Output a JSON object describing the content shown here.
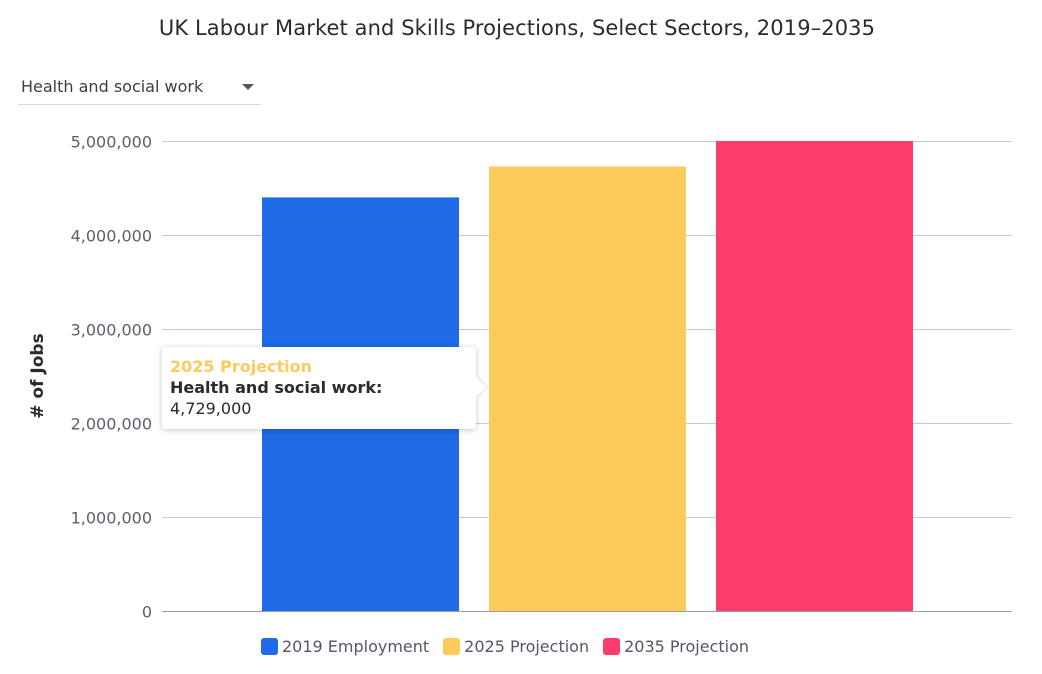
{
  "chart_data": {
    "type": "bar",
    "title": "UK Labour Market and Skills Projections, Select Sectors, 2019–2035",
    "xlabel": "",
    "ylabel": "# of Jobs",
    "ylim": [
      0,
      5000000
    ],
    "yticks": [
      {
        "value": 0,
        "label": "0"
      },
      {
        "value": 1000000,
        "label": "1,000,000"
      },
      {
        "value": 2000000,
        "label": "2,000,000"
      },
      {
        "value": 3000000,
        "label": "3,000,000"
      },
      {
        "value": 4000000,
        "label": "4,000,000"
      },
      {
        "value": 5000000,
        "label": "5,000,000"
      }
    ],
    "grid": true,
    "legend_position": "bottom",
    "categories": [
      "Health and social work"
    ],
    "series": [
      {
        "name": "2019 Employment",
        "color": "#1f6ae6",
        "values": [
          4400000
        ]
      },
      {
        "name": "2025 Projection",
        "color": "#fdca5c",
        "values": [
          4729000
        ]
      },
      {
        "name": "2035 Projection",
        "color": "#fc3c6c",
        "values": [
          5000000
        ]
      }
    ]
  },
  "controls": {
    "sector_dropdown": {
      "selected": "Health and social work",
      "icon": "chevron-down-icon"
    }
  },
  "tooltip": {
    "series": "2025 Projection",
    "series_color": "#fdca5c",
    "category_line": "Health and social work:",
    "value": "4,729,000"
  }
}
